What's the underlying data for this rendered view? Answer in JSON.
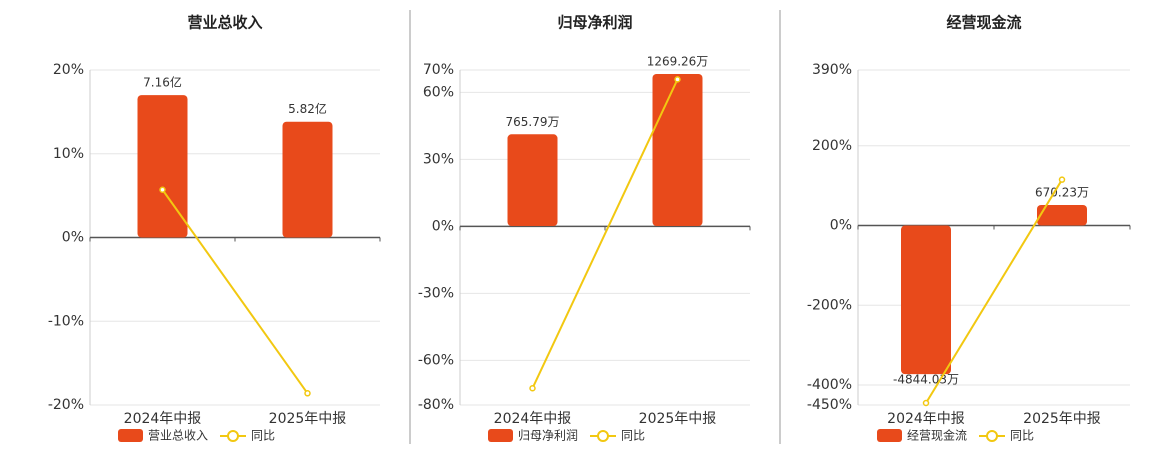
{
  "chart_data": [
    {
      "type": "bar",
      "title": "营业总收入",
      "categories": [
        "2024年中报",
        "2025年中报"
      ],
      "series": [
        {
          "name": "营业总收入",
          "type": "bar",
          "axis": "y2",
          "color": "#e84a1b",
          "values": [
            716000000,
            582000000
          ],
          "value_labels": [
            "7.16亿",
            "5.82亿"
          ]
        },
        {
          "name": "同比",
          "type": "line",
          "color": "#f2c811",
          "values": [
            5.7,
            -18.6
          ]
        }
      ],
      "ylim": [
        -20,
        20
      ],
      "yticks": [
        {
          "value": -20,
          "label": "-20%"
        },
        {
          "value": -10,
          "label": "-10%"
        },
        {
          "value": 0,
          "label": "0%"
        },
        {
          "value": 10,
          "label": "10%"
        },
        {
          "value": 20,
          "label": "20%"
        }
      ],
      "y2lim": [
        -842000000,
        842000000
      ],
      "grid": true
    },
    {
      "type": "bar",
      "title": "归母净利润",
      "categories": [
        "2024年中报",
        "2025年中报"
      ],
      "series": [
        {
          "name": "归母净利润",
          "type": "bar",
          "axis": "y2",
          "color": "#e84a1b",
          "values": [
            7657900,
            12692600
          ],
          "value_labels": [
            "765.79万",
            "1269.26万"
          ]
        },
        {
          "name": "同比",
          "type": "line",
          "color": "#f2c811",
          "values": [
            -72.5,
            65.8
          ]
        }
      ],
      "ylim": [
        -80,
        70
      ],
      "yticks": [
        {
          "value": -80,
          "label": "-80%"
        },
        {
          "value": -60,
          "label": "-60%"
        },
        {
          "value": -30,
          "label": "-30%"
        },
        {
          "value": 0,
          "label": "0%"
        },
        {
          "value": 30,
          "label": "30%"
        },
        {
          "value": 60,
          "label": "60%"
        },
        {
          "value": 70,
          "label": "70%"
        }
      ],
      "y2lim": [
        -14947000,
        13026000
      ],
      "grid": true
    },
    {
      "type": "bar",
      "title": "经营现金流",
      "categories": [
        "2024年中报",
        "2025年中报"
      ],
      "series": [
        {
          "name": "经营现金流",
          "type": "bar",
          "axis": "y2",
          "color": "#e84a1b",
          "values": [
            -48440300,
            6702300
          ],
          "value_labels": [
            "-4844.03万",
            "670.23万"
          ]
        },
        {
          "name": "同比",
          "type": "line",
          "color": "#f2c811",
          "values": [
            -445,
            115
          ]
        }
      ],
      "ylim": [
        -450,
        390
      ],
      "yticks": [
        {
          "value": -450,
          "label": "-450%"
        },
        {
          "value": -400,
          "label": "-400%"
        },
        {
          "value": -200,
          "label": "-200%"
        },
        {
          "value": 0,
          "label": "0%"
        },
        {
          "value": 200,
          "label": "200%"
        },
        {
          "value": 390,
          "label": "390%"
        }
      ],
      "y2lim": [
        -58500000,
        50700000
      ],
      "grid": true
    }
  ]
}
